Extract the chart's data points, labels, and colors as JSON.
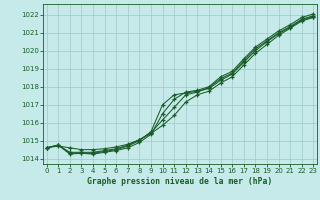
{
  "title": "Graphe pression niveau de la mer (hPa)",
  "background_color": "#c6eaea",
  "grid_color": "#9fc8c8",
  "line_color": "#1a5c28",
  "xlim": [
    -0.3,
    23.3
  ],
  "ylim": [
    1013.7,
    1022.6
  ],
  "yticks": [
    1014,
    1015,
    1016,
    1017,
    1018,
    1019,
    1020,
    1021,
    1022
  ],
  "xticks": [
    0,
    1,
    2,
    3,
    4,
    5,
    6,
    7,
    8,
    9,
    10,
    11,
    12,
    13,
    14,
    15,
    16,
    17,
    18,
    19,
    20,
    21,
    22,
    23
  ],
  "line1_x": [
    0,
    1,
    2,
    3,
    4,
    5,
    6,
    7,
    8,
    9,
    10,
    11,
    12,
    13,
    14,
    15,
    16,
    17,
    18,
    19,
    20,
    21,
    22,
    23
  ],
  "line1_y": [
    1014.6,
    1014.7,
    1014.6,
    1014.5,
    1014.5,
    1014.55,
    1014.65,
    1014.8,
    1015.05,
    1015.4,
    1015.85,
    1016.4,
    1017.15,
    1017.55,
    1017.75,
    1018.2,
    1018.55,
    1019.2,
    1019.85,
    1020.35,
    1020.85,
    1021.25,
    1021.65,
    1021.85
  ],
  "line2_x": [
    0,
    1,
    2,
    3,
    4,
    5,
    6,
    7,
    8,
    9,
    10,
    11,
    12,
    13,
    14,
    15,
    16,
    17,
    18,
    19,
    20,
    21,
    22,
    23
  ],
  "line2_y": [
    1014.6,
    1014.75,
    1014.25,
    1014.3,
    1014.25,
    1014.35,
    1014.45,
    1014.6,
    1014.9,
    1015.35,
    1016.5,
    1017.3,
    1017.7,
    1017.8,
    1018.0,
    1018.55,
    1018.85,
    1019.55,
    1020.2,
    1020.65,
    1021.1,
    1021.45,
    1021.85,
    1022.05
  ],
  "line3_x": [
    0,
    1,
    2,
    3,
    4,
    5,
    6,
    7,
    8,
    9,
    10,
    11,
    12,
    13,
    14,
    15,
    16,
    17,
    18,
    19,
    20,
    21,
    22,
    23
  ],
  "line3_y": [
    1014.6,
    1014.75,
    1014.35,
    1014.35,
    1014.35,
    1014.45,
    1014.55,
    1014.75,
    1015.05,
    1015.45,
    1016.15,
    1016.85,
    1017.55,
    1017.7,
    1017.95,
    1018.45,
    1018.75,
    1019.45,
    1020.1,
    1020.55,
    1021.0,
    1021.35,
    1021.75,
    1021.95
  ],
  "line4_x": [
    0,
    1,
    2,
    3,
    4,
    5,
    6,
    7,
    8,
    9,
    10,
    11,
    12,
    13,
    14,
    15,
    16,
    17,
    18,
    19,
    20,
    21,
    22,
    23
  ],
  "line4_y": [
    1014.6,
    1014.75,
    1014.3,
    1014.3,
    1014.3,
    1014.4,
    1014.5,
    1014.7,
    1015.0,
    1015.5,
    1017.0,
    1017.55,
    1017.65,
    1017.75,
    1017.9,
    1018.35,
    1018.7,
    1019.35,
    1020.0,
    1020.5,
    1020.95,
    1021.3,
    1021.7,
    1021.9
  ]
}
